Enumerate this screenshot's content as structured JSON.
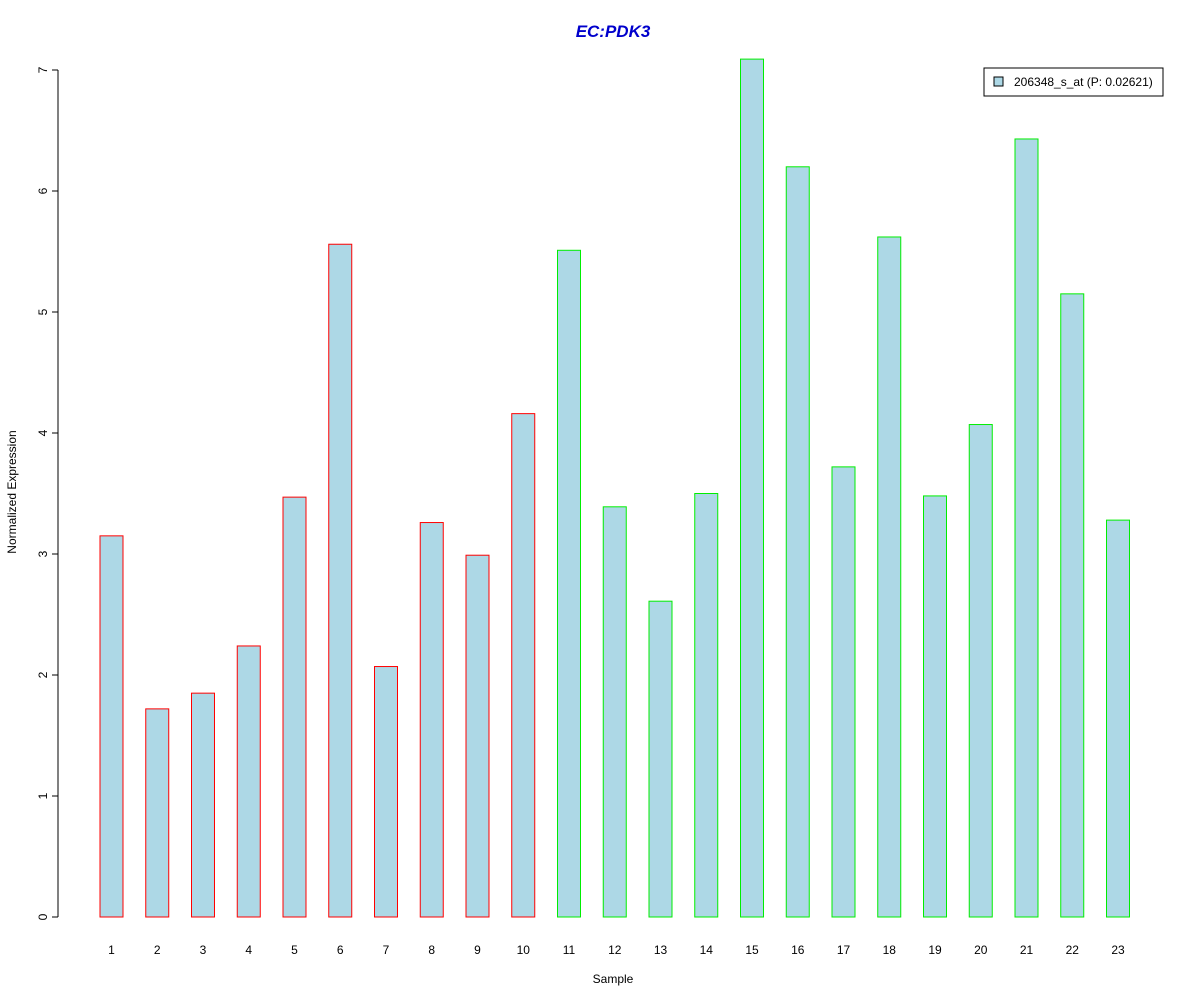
{
  "chart_data": {
    "type": "bar",
    "title": "EC:PDK3",
    "xlabel": "Sample",
    "ylabel": "Normalized Expression",
    "categories": [
      "1",
      "2",
      "3",
      "4",
      "5",
      "6",
      "7",
      "8",
      "9",
      "10",
      "11",
      "12",
      "13",
      "14",
      "15",
      "16",
      "17",
      "18",
      "19",
      "20",
      "21",
      "22",
      "23"
    ],
    "values": [
      3.15,
      1.72,
      1.85,
      2.24,
      3.47,
      5.56,
      2.07,
      3.26,
      2.99,
      4.16,
      5.51,
      3.39,
      2.61,
      3.5,
      7.09,
      6.2,
      3.72,
      5.62,
      3.48,
      4.07,
      6.43,
      5.15,
      3.28
    ],
    "group_of_bar": [
      "red",
      "red",
      "red",
      "red",
      "red",
      "red",
      "red",
      "red",
      "red",
      "red",
      "green",
      "green",
      "green",
      "green",
      "green",
      "green",
      "green",
      "green",
      "green",
      "green",
      "green",
      "green",
      "green"
    ],
    "ylim": [
      0,
      7
    ],
    "yticks": [
      0,
      1,
      2,
      3,
      4,
      5,
      6,
      7
    ],
    "grid": false,
    "legend": {
      "placement": "top-right",
      "entries": [
        "206348_s_at (P: 0.02621)"
      ]
    },
    "colors": {
      "title": "#0000cc",
      "bar_fill": "#add8e6",
      "border_red": "#ff0000",
      "border_green": "#00ee00",
      "axis": "#000000"
    }
  }
}
